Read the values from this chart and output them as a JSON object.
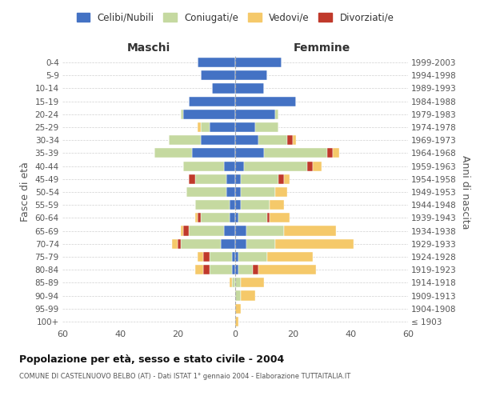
{
  "age_groups": [
    "100+",
    "95-99",
    "90-94",
    "85-89",
    "80-84",
    "75-79",
    "70-74",
    "65-69",
    "60-64",
    "55-59",
    "50-54",
    "45-49",
    "40-44",
    "35-39",
    "30-34",
    "25-29",
    "20-24",
    "15-19",
    "10-14",
    "5-9",
    "0-4"
  ],
  "birth_years": [
    "≤ 1903",
    "1904-1908",
    "1909-1913",
    "1914-1918",
    "1919-1923",
    "1924-1928",
    "1929-1933",
    "1934-1938",
    "1939-1943",
    "1944-1948",
    "1949-1953",
    "1954-1958",
    "1959-1963",
    "1964-1968",
    "1969-1973",
    "1974-1978",
    "1979-1983",
    "1984-1988",
    "1989-1993",
    "1994-1998",
    "1999-2003"
  ],
  "maschi_celibi": [
    0,
    0,
    0,
    0,
    1,
    1,
    5,
    4,
    2,
    2,
    3,
    3,
    4,
    15,
    12,
    9,
    18,
    16,
    8,
    12,
    13
  ],
  "maschi_coniugati": [
    0,
    0,
    0,
    1,
    8,
    8,
    14,
    12,
    10,
    12,
    14,
    11,
    14,
    13,
    11,
    3,
    1,
    0,
    0,
    0,
    0
  ],
  "maschi_vedovi": [
    0,
    0,
    0,
    1,
    3,
    2,
    2,
    1,
    1,
    0,
    0,
    0,
    0,
    0,
    0,
    1,
    0,
    0,
    0,
    0,
    0
  ],
  "maschi_divorziati": [
    0,
    0,
    0,
    0,
    2,
    2,
    1,
    2,
    1,
    0,
    0,
    2,
    0,
    0,
    0,
    0,
    0,
    0,
    0,
    0,
    0
  ],
  "femmine_celibi": [
    0,
    0,
    0,
    0,
    1,
    1,
    4,
    4,
    1,
    2,
    2,
    2,
    3,
    10,
    8,
    7,
    14,
    21,
    10,
    11,
    16
  ],
  "femmine_coniugati": [
    0,
    0,
    2,
    2,
    5,
    10,
    10,
    13,
    10,
    10,
    12,
    13,
    22,
    22,
    10,
    8,
    1,
    0,
    0,
    0,
    0
  ],
  "femmine_vedovi": [
    1,
    2,
    5,
    8,
    20,
    16,
    27,
    18,
    7,
    5,
    4,
    2,
    3,
    2,
    1,
    0,
    0,
    0,
    0,
    0,
    0
  ],
  "femmine_divorziati": [
    0,
    0,
    0,
    0,
    2,
    0,
    0,
    0,
    1,
    0,
    0,
    2,
    2,
    2,
    2,
    0,
    0,
    0,
    0,
    0,
    0
  ],
  "color_celibi": "#4472c4",
  "color_coniugati": "#c5d9a0",
  "color_vedovi": "#f5c96a",
  "color_divorziati": "#c0392b",
  "title": "Popolazione per età, sesso e stato civile - 2004",
  "subtitle": "COMUNE DI CASTELNUOVO BELBO (AT) - Dati ISTAT 1° gennaio 2004 - Elaborazione TUTTAITALIA.IT",
  "xlabel_maschi": "Maschi",
  "xlabel_femmine": "Femmine",
  "ylabel": "Fasce di età",
  "ylabel_right": "Anni di nascita",
  "xlim": 60,
  "legend_labels": [
    "Celibi/Nubili",
    "Coniugati/e",
    "Vedovi/e",
    "Divorziati/e"
  ],
  "background_color": "#ffffff",
  "grid_color": "#cccccc"
}
